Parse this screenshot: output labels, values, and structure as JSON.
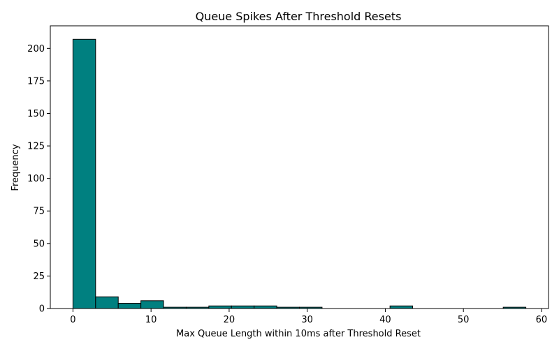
{
  "chart_data": {
    "type": "bar",
    "title": "Queue Spikes After Threshold Resets",
    "xlabel": "Max Queue Length within 10ms after Threshold Reset",
    "ylabel": "Frequency",
    "xlim": [
      -2.9,
      60.9
    ],
    "ylim": [
      0,
      217.35
    ],
    "x_ticks": [
      0,
      10,
      20,
      30,
      40,
      50,
      60
    ],
    "y_ticks": [
      0,
      25,
      50,
      75,
      100,
      125,
      150,
      175,
      200
    ],
    "bin_edges": [
      0,
      2.9,
      5.8,
      8.7,
      11.6,
      14.5,
      17.4,
      20.3,
      23.2,
      26.1,
      29.0,
      31.9,
      34.8,
      37.7,
      40.6,
      43.5,
      46.4,
      49.3,
      52.2,
      55.1,
      58.0
    ],
    "values": [
      207,
      9,
      4,
      6,
      1,
      1,
      2,
      2,
      2,
      1,
      1,
      0,
      0,
      0,
      2,
      0,
      0,
      0,
      0,
      1
    ],
    "bar_color": "#008080",
    "edge_color": "#000000",
    "grid": false
  }
}
